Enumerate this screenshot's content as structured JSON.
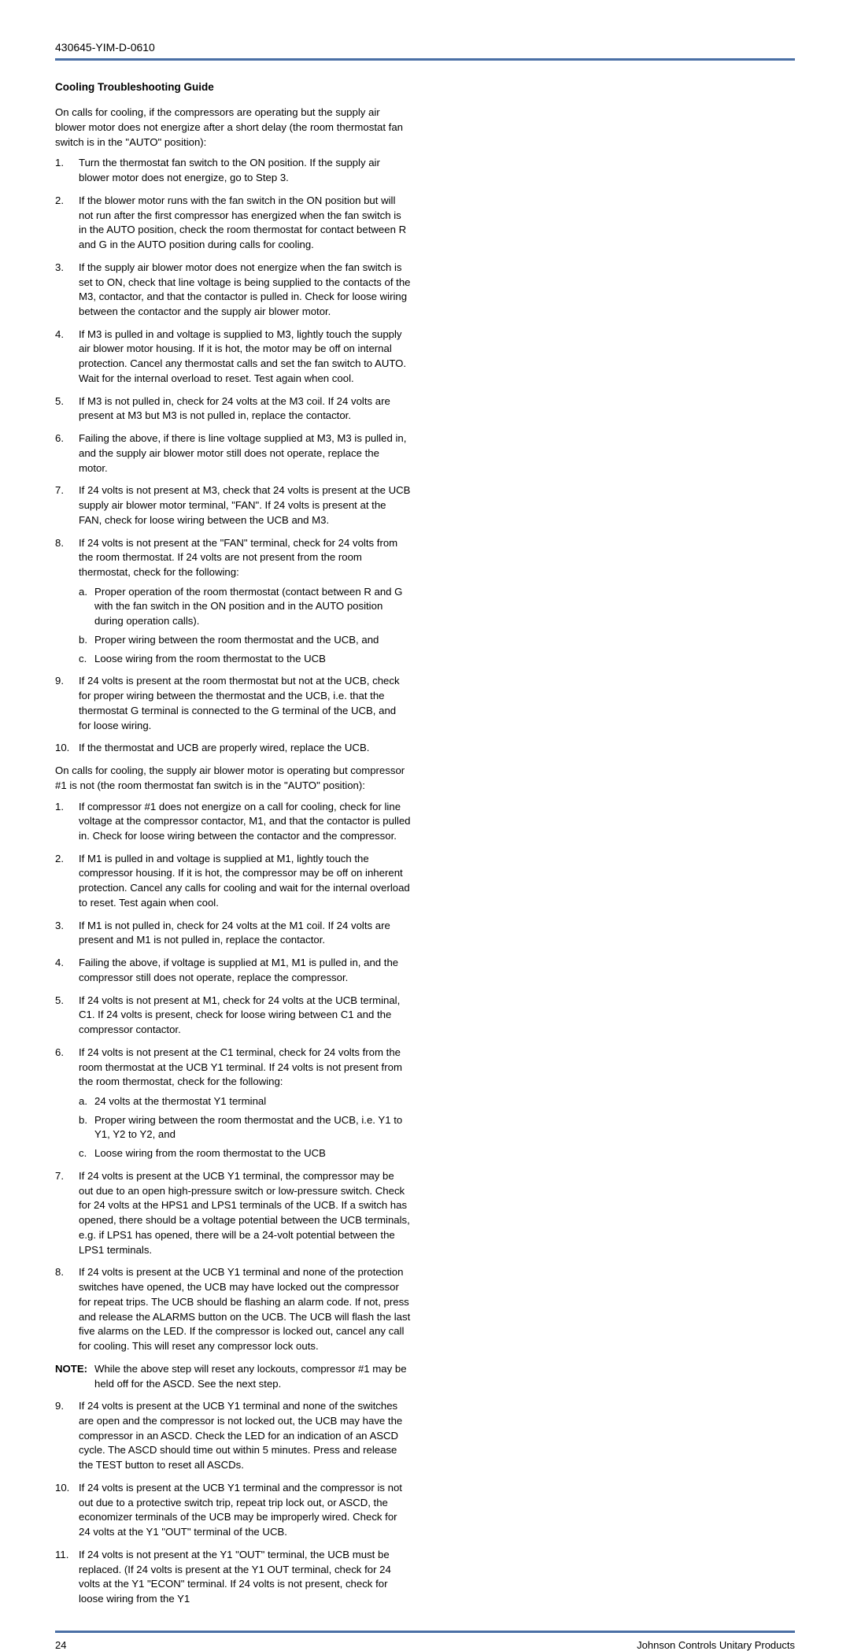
{
  "header": {
    "doc_code": "430645-YIM-D-0610"
  },
  "footer": {
    "page_number": "24",
    "company": "Johnson Controls Unitary Products"
  },
  "colors": {
    "rule": "#4a6fa5",
    "text": "#000000",
    "background": "#ffffff"
  },
  "section_title": "Cooling Troubleshooting Guide",
  "intro1": "On calls for cooling, if the compressors are operating but the supply air blower motor does not energize after a short delay (the room thermostat fan switch is in the \"AUTO\" position):",
  "list1": [
    {
      "n": "1.",
      "t": "Turn the thermostat fan switch to the ON position. If the supply air blower motor does not energize, go to Step 3."
    },
    {
      "n": "2.",
      "t": "If the blower motor runs with the fan switch in the ON position but will not run after the first compressor has energized when the fan switch is in the AUTO position, check the room thermostat for contact between R and G in the AUTO position during calls for cooling."
    },
    {
      "n": "3.",
      "t": "If the supply air blower motor does not energize when the fan switch is set to ON, check that line voltage is being supplied to the contacts of the M3, contactor, and that the contactor is pulled in. Check for loose wiring between the contactor and the supply air blower motor."
    },
    {
      "n": "4.",
      "t": "If M3 is pulled in and voltage is supplied to M3, lightly touch the supply air blower motor housing. If it is hot, the motor may be off on internal protection. Cancel any thermostat calls and set the fan switch to AUTO. Wait for the internal overload to reset. Test again when cool."
    },
    {
      "n": "5.",
      "t": "If M3 is not pulled in, check for 24 volts at the M3 coil. If 24 volts are present at M3 but M3 is not pulled in, replace the contactor."
    },
    {
      "n": "6.",
      "t": "Failing the above, if there is line voltage supplied at M3, M3 is pulled in, and the supply air blower motor still does not operate, replace the motor."
    },
    {
      "n": "7.",
      "t": "If 24 volts is not present at M3, check that 24 volts is present at the UCB supply air blower motor terminal, \"FAN\". If 24 volts is present at the FAN, check for loose wiring between the UCB and M3."
    },
    {
      "n": "8.",
      "t": "If 24 volts is not present at the \"FAN\" terminal, check for 24 volts from the room thermostat. If 24 volts are not present from the room thermostat, check for the following:",
      "sub": [
        {
          "l": "a.",
          "t": "Proper operation of the room thermostat (contact between R and G with the fan switch in the ON position and in the AUTO position during operation calls)."
        },
        {
          "l": "b.",
          "t": "Proper wiring between the room thermostat and the UCB, and"
        },
        {
          "l": "c.",
          "t": "Loose wiring from the room thermostat to the UCB"
        }
      ]
    },
    {
      "n": "9.",
      "t": "If 24 volts is present at the room thermostat but not at the UCB, check for proper wiring between the thermostat and the UCB, i.e. that the thermostat G terminal is connected to the G terminal of the UCB, and for loose wiring."
    },
    {
      "n": "10.",
      "t": "If the thermostat and UCB are properly wired, replace the UCB."
    }
  ],
  "intro2": "On calls for cooling, the supply air blower motor is operating but compressor #1 is not (the room thermostat fan switch is in the \"AUTO\" position):",
  "list2a": [
    {
      "n": "1.",
      "t": "If compressor #1 does not energize on a call for cooling, check for line voltage at the compressor contactor, M1, and that the contactor is pulled in. Check for loose wiring between the contactor and the compressor."
    },
    {
      "n": "2.",
      "t": "If M1 is pulled in and voltage is supplied at M1, lightly touch the compressor housing. If it is hot, the compressor may be off on inherent protection. Cancel any calls for cooling and wait for the internal overload to reset. Test again when cool."
    },
    {
      "n": "3.",
      "t": "If M1 is not pulled in, check for 24 volts at the M1 coil. If 24 volts are present and M1 is not pulled in, replace the contactor."
    },
    {
      "n": "4.",
      "t": "Failing the above, if voltage is supplied at M1, M1 is pulled in, and the compressor still does not operate, replace the compressor."
    },
    {
      "n": "5.",
      "t": "If 24 volts is not present at M1, check for 24 volts at the UCB terminal, C1. If 24 volts is present, check for loose wiring between C1 and the compressor contactor."
    },
    {
      "n": "6.",
      "t": "If 24 volts is not present at the C1 terminal, check for 24 volts from the room thermostat at the UCB Y1 terminal. If 24 volts is not present from the room thermostat, check for the following:",
      "sub": [
        {
          "l": "a.",
          "t": "24 volts at the thermostat Y1 terminal"
        },
        {
          "l": "b.",
          "t": "Proper wiring between the room thermostat and the UCB, i.e. Y1 to Y1, Y2 to Y2, and"
        },
        {
          "l": "c.",
          "t": "Loose wiring from the room thermostat to the UCB"
        }
      ]
    },
    {
      "n": "7.",
      "t": "If 24 volts is present at the UCB Y1 terminal, the compressor may be out due to an open high-pressure switch or low-pressure switch. Check for 24 volts at the HPS1 and LPS1 terminals of the UCB. If a switch has opened, there should be a voltage potential between the UCB terminals, e.g. if LPS1 has opened, there will be a 24-volt potential between the LPS1 terminals."
    },
    {
      "n": "8.",
      "t": "If 24 volts is present at the UCB Y1 terminal and none of the protection switches have opened, the UCB may have locked out the compressor for repeat trips. The UCB should be flashing an alarm code. If not, press and release the ALARMS button on the UCB. The UCB will flash the last five alarms on the LED. If the compressor is locked out, cancel any call for cooling. This will reset any compressor lock outs."
    }
  ],
  "note": {
    "label": "NOTE:",
    "text": "While the above step will reset any lockouts, compressor #1 may be held off for the ASCD. See the next step."
  },
  "list2b": [
    {
      "n": "9.",
      "t": "If 24 volts is present at the UCB Y1 terminal and none of the switches are open and the compressor is not locked out, the UCB may have the compressor in an ASCD. Check the LED for an indication of an ASCD cycle. The ASCD should time out within 5 minutes. Press and release the TEST button to reset all ASCDs."
    },
    {
      "n": "10.",
      "t": "If 24 volts is present at the UCB Y1 terminal and the compressor is not out due to a protective switch trip, repeat trip lock out, or ASCD, the economizer terminals of the UCB may be improperly wired. Check for 24 volts at the Y1 \"OUT\" terminal of the UCB."
    },
    {
      "n": "11.",
      "t": "If 24 volts is not present at the Y1 \"OUT\" terminal, the UCB must be replaced. (If 24 volts is present at the Y1 OUT terminal, check for 24 volts at the Y1 \"ECON\" terminal. If 24 volts is not present, check for loose wiring from the Y1"
    }
  ]
}
